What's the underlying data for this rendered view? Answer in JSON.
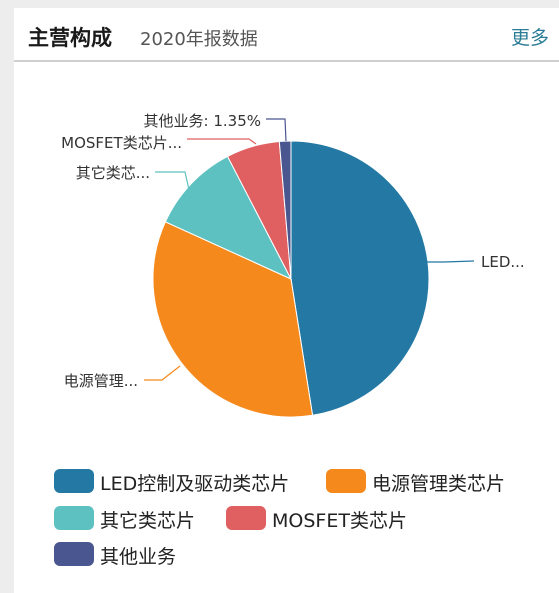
{
  "header": {
    "title": "主营构成",
    "subtitle": "2020年报数据",
    "more_label": "更多"
  },
  "chart_data": {
    "type": "pie",
    "series": [
      {
        "name": "LED控制及驱动类芯片",
        "short_label": "LED...",
        "value": 47.5,
        "color": "#2378a4"
      },
      {
        "name": "电源管理类芯片",
        "short_label": "电源管理...",
        "value": 34.3,
        "color": "#f5891c"
      },
      {
        "name": "其它类芯片",
        "short_label": "其它类芯...",
        "value": 10.6,
        "color": "#5ec1c1"
      },
      {
        "name": "MOSFET类芯片",
        "short_label": "MOSFET类芯片...",
        "value": 6.25,
        "color": "#e06061"
      },
      {
        "name": "其他业务",
        "short_label": "其他业务: 1.35%",
        "value": 1.35,
        "color": "#4a5690"
      }
    ],
    "legend_position": "bottom"
  }
}
